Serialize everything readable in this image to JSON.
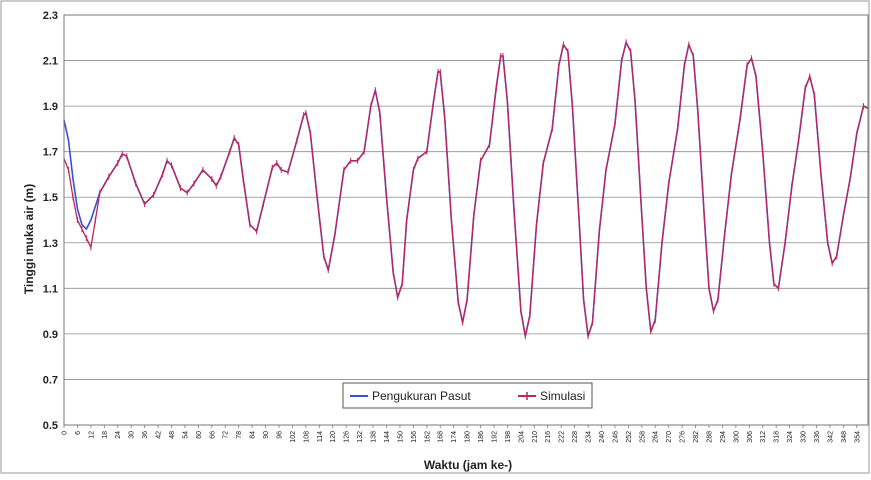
{
  "chart_data": {
    "type": "line",
    "title": "",
    "xlabel": "Waktu (jam ke-)",
    "ylabel": "Tinggi muka air (m)",
    "ylim": [
      0.5,
      2.3
    ],
    "xlim": [
      0,
      359
    ],
    "yticks": [
      "0.5",
      "0.7",
      "0.9",
      "1.1",
      "1.3",
      "1.5",
      "1.7",
      "1.9",
      "2.1",
      "2.3"
    ],
    "xticks": [
      "0",
      "6",
      "12",
      "18",
      "24",
      "30",
      "36",
      "42",
      "48",
      "54",
      "60",
      "66",
      "72",
      "78",
      "84",
      "90",
      "96",
      "102",
      "108",
      "114",
      "120",
      "126",
      "132",
      "138",
      "144",
      "150",
      "156",
      "162",
      "168",
      "174",
      "180",
      "186",
      "192",
      "198",
      "204",
      "210",
      "216",
      "222",
      "228",
      "234",
      "240",
      "246",
      "252",
      "258",
      "264",
      "270",
      "276",
      "282",
      "288",
      "294",
      "300",
      "306",
      "312",
      "318",
      "324",
      "330",
      "336",
      "342",
      "348",
      "354"
    ],
    "grid": "horizontal",
    "legend_position": "bottom-center",
    "series": [
      {
        "name": "Pengukuran Pasut",
        "color": "#3a4fd8",
        "points": [
          [
            0,
            1.84
          ],
          [
            2,
            1.75
          ],
          [
            4,
            1.58
          ],
          [
            6,
            1.45
          ],
          [
            8,
            1.38
          ],
          [
            10,
            1.36
          ],
          [
            12,
            1.4
          ],
          [
            16,
            1.52
          ],
          [
            20,
            1.59
          ],
          [
            24,
            1.65
          ],
          [
            26,
            1.69
          ],
          [
            28,
            1.68
          ],
          [
            32,
            1.56
          ],
          [
            36,
            1.47
          ],
          [
            40,
            1.51
          ],
          [
            44,
            1.6
          ],
          [
            46,
            1.66
          ],
          [
            48,
            1.64
          ],
          [
            52,
            1.54
          ],
          [
            55,
            1.52
          ],
          [
            58,
            1.56
          ],
          [
            62,
            1.62
          ],
          [
            66,
            1.58
          ],
          [
            68,
            1.55
          ],
          [
            70,
            1.59
          ],
          [
            74,
            1.7
          ],
          [
            76,
            1.76
          ],
          [
            78,
            1.73
          ],
          [
            80,
            1.58
          ],
          [
            83,
            1.38
          ],
          [
            86,
            1.35
          ],
          [
            89,
            1.47
          ],
          [
            93,
            1.63
          ],
          [
            95,
            1.65
          ],
          [
            97,
            1.62
          ],
          [
            100,
            1.61
          ],
          [
            104,
            1.75
          ],
          [
            107,
            1.86
          ],
          [
            108,
            1.87
          ],
          [
            110,
            1.78
          ],
          [
            113,
            1.5
          ],
          [
            116,
            1.24
          ],
          [
            118,
            1.18
          ],
          [
            121,
            1.34
          ],
          [
            125,
            1.62
          ],
          [
            128,
            1.66
          ],
          [
            131,
            1.66
          ],
          [
            134,
            1.7
          ],
          [
            137,
            1.9
          ],
          [
            139,
            1.97
          ],
          [
            141,
            1.87
          ],
          [
            144,
            1.5
          ],
          [
            147,
            1.17
          ],
          [
            149,
            1.06
          ],
          [
            151,
            1.12
          ],
          [
            153,
            1.4
          ],
          [
            156,
            1.62
          ],
          [
            158,
            1.67
          ],
          [
            162,
            1.7
          ],
          [
            165,
            1.92
          ],
          [
            167,
            2.05
          ],
          [
            168,
            2.05
          ],
          [
            170,
            1.85
          ],
          [
            173,
            1.4
          ],
          [
            176,
            1.04
          ],
          [
            178,
            0.95
          ],
          [
            180,
            1.05
          ],
          [
            183,
            1.42
          ],
          [
            186,
            1.66
          ],
          [
            190,
            1.73
          ],
          [
            193,
            1.98
          ],
          [
            195,
            2.12
          ],
          [
            196,
            2.12
          ],
          [
            198,
            1.92
          ],
          [
            201,
            1.43
          ],
          [
            204,
            1.0
          ],
          [
            206,
            0.89
          ],
          [
            208,
            0.98
          ],
          [
            211,
            1.38
          ],
          [
            214,
            1.65
          ],
          [
            218,
            1.8
          ],
          [
            221,
            2.08
          ],
          [
            223,
            2.17
          ],
          [
            225,
            2.14
          ],
          [
            227,
            1.9
          ],
          [
            230,
            1.4
          ],
          [
            232,
            1.05
          ],
          [
            234,
            0.89
          ],
          [
            236,
            0.95
          ],
          [
            239,
            1.35
          ],
          [
            242,
            1.62
          ],
          [
            246,
            1.82
          ],
          [
            249,
            2.1
          ],
          [
            251,
            2.18
          ],
          [
            253,
            2.14
          ],
          [
            255,
            1.92
          ],
          [
            258,
            1.42
          ],
          [
            260,
            1.1
          ],
          [
            262,
            0.91
          ],
          [
            264,
            0.96
          ],
          [
            267,
            1.3
          ],
          [
            270,
            1.56
          ],
          [
            274,
            1.8
          ],
          [
            277,
            2.08
          ],
          [
            279,
            2.17
          ],
          [
            281,
            2.12
          ],
          [
            283,
            1.88
          ],
          [
            286,
            1.4
          ],
          [
            288,
            1.1
          ],
          [
            290,
            1.0
          ],
          [
            292,
            1.05
          ],
          [
            295,
            1.34
          ],
          [
            298,
            1.6
          ],
          [
            302,
            1.85
          ],
          [
            305,
            2.08
          ],
          [
            307,
            2.11
          ],
          [
            309,
            2.03
          ],
          [
            312,
            1.7
          ],
          [
            315,
            1.3
          ],
          [
            317,
            1.12
          ],
          [
            319,
            1.1
          ],
          [
            322,
            1.3
          ],
          [
            325,
            1.55
          ],
          [
            328,
            1.75
          ],
          [
            331,
            1.98
          ],
          [
            333,
            2.03
          ],
          [
            335,
            1.95
          ],
          [
            338,
            1.6
          ],
          [
            341,
            1.3
          ],
          [
            343,
            1.21
          ],
          [
            345,
            1.24
          ],
          [
            348,
            1.42
          ],
          [
            351,
            1.58
          ],
          [
            354,
            1.78
          ],
          [
            357,
            1.9
          ],
          [
            359,
            1.89
          ]
        ]
      },
      {
        "name": "Simulasi",
        "color": "#c0245c",
        "points": [
          [
            0,
            1.67
          ],
          [
            2,
            1.62
          ],
          [
            4,
            1.5
          ],
          [
            6,
            1.4
          ],
          [
            8,
            1.36
          ],
          [
            10,
            1.32
          ],
          [
            12,
            1.28
          ],
          [
            14,
            1.4
          ],
          [
            16,
            1.52
          ],
          [
            20,
            1.59
          ],
          [
            24,
            1.65
          ],
          [
            26,
            1.69
          ],
          [
            28,
            1.68
          ],
          [
            32,
            1.56
          ],
          [
            36,
            1.47
          ],
          [
            40,
            1.51
          ],
          [
            44,
            1.6
          ],
          [
            46,
            1.66
          ],
          [
            48,
            1.64
          ],
          [
            52,
            1.54
          ],
          [
            55,
            1.52
          ],
          [
            58,
            1.56
          ],
          [
            62,
            1.62
          ],
          [
            66,
            1.58
          ],
          [
            68,
            1.55
          ],
          [
            70,
            1.59
          ],
          [
            74,
            1.7
          ],
          [
            76,
            1.76
          ],
          [
            78,
            1.73
          ],
          [
            80,
            1.58
          ],
          [
            83,
            1.38
          ],
          [
            86,
            1.35
          ],
          [
            89,
            1.47
          ],
          [
            93,
            1.63
          ],
          [
            95,
            1.65
          ],
          [
            97,
            1.62
          ],
          [
            100,
            1.61
          ],
          [
            104,
            1.75
          ],
          [
            107,
            1.86
          ],
          [
            108,
            1.87
          ],
          [
            110,
            1.78
          ],
          [
            113,
            1.5
          ],
          [
            116,
            1.24
          ],
          [
            118,
            1.18
          ],
          [
            121,
            1.34
          ],
          [
            125,
            1.62
          ],
          [
            128,
            1.66
          ],
          [
            131,
            1.66
          ],
          [
            134,
            1.7
          ],
          [
            137,
            1.9
          ],
          [
            139,
            1.97
          ],
          [
            141,
            1.87
          ],
          [
            144,
            1.5
          ],
          [
            147,
            1.17
          ],
          [
            149,
            1.06
          ],
          [
            151,
            1.12
          ],
          [
            153,
            1.4
          ],
          [
            156,
            1.62
          ],
          [
            158,
            1.67
          ],
          [
            162,
            1.7
          ],
          [
            165,
            1.92
          ],
          [
            167,
            2.05
          ],
          [
            168,
            2.05
          ],
          [
            170,
            1.85
          ],
          [
            173,
            1.4
          ],
          [
            176,
            1.04
          ],
          [
            178,
            0.95
          ],
          [
            180,
            1.05
          ],
          [
            183,
            1.42
          ],
          [
            186,
            1.66
          ],
          [
            190,
            1.73
          ],
          [
            193,
            1.98
          ],
          [
            195,
            2.12
          ],
          [
            196,
            2.12
          ],
          [
            198,
            1.92
          ],
          [
            201,
            1.43
          ],
          [
            204,
            1.0
          ],
          [
            206,
            0.89
          ],
          [
            208,
            0.98
          ],
          [
            211,
            1.38
          ],
          [
            214,
            1.65
          ],
          [
            218,
            1.8
          ],
          [
            221,
            2.08
          ],
          [
            223,
            2.17
          ],
          [
            225,
            2.14
          ],
          [
            227,
            1.9
          ],
          [
            230,
            1.4
          ],
          [
            232,
            1.05
          ],
          [
            234,
            0.89
          ],
          [
            236,
            0.95
          ],
          [
            239,
            1.35
          ],
          [
            242,
            1.62
          ],
          [
            246,
            1.82
          ],
          [
            249,
            2.1
          ],
          [
            251,
            2.18
          ],
          [
            253,
            2.14
          ],
          [
            255,
            1.92
          ],
          [
            258,
            1.42
          ],
          [
            260,
            1.1
          ],
          [
            262,
            0.91
          ],
          [
            264,
            0.96
          ],
          [
            267,
            1.3
          ],
          [
            270,
            1.56
          ],
          [
            274,
            1.8
          ],
          [
            277,
            2.08
          ],
          [
            279,
            2.17
          ],
          [
            281,
            2.12
          ],
          [
            283,
            1.88
          ],
          [
            286,
            1.4
          ],
          [
            288,
            1.1
          ],
          [
            290,
            1.0
          ],
          [
            292,
            1.05
          ],
          [
            295,
            1.34
          ],
          [
            298,
            1.6
          ],
          [
            302,
            1.85
          ],
          [
            305,
            2.08
          ],
          [
            307,
            2.11
          ],
          [
            309,
            2.03
          ],
          [
            312,
            1.7
          ],
          [
            315,
            1.3
          ],
          [
            317,
            1.12
          ],
          [
            319,
            1.1
          ],
          [
            322,
            1.3
          ],
          [
            325,
            1.55
          ],
          [
            328,
            1.75
          ],
          [
            331,
            1.98
          ],
          [
            333,
            2.03
          ],
          [
            335,
            1.95
          ],
          [
            338,
            1.6
          ],
          [
            341,
            1.3
          ],
          [
            343,
            1.21
          ],
          [
            345,
            1.24
          ],
          [
            348,
            1.42
          ],
          [
            351,
            1.58
          ],
          [
            354,
            1.78
          ],
          [
            357,
            1.9
          ],
          [
            359,
            1.89
          ]
        ]
      }
    ]
  },
  "legend": {
    "items": [
      {
        "label": "Pengukuran Pasut",
        "color": "#3a4fd8"
      },
      {
        "label": "Simulasi",
        "color": "#c0245c"
      }
    ]
  }
}
